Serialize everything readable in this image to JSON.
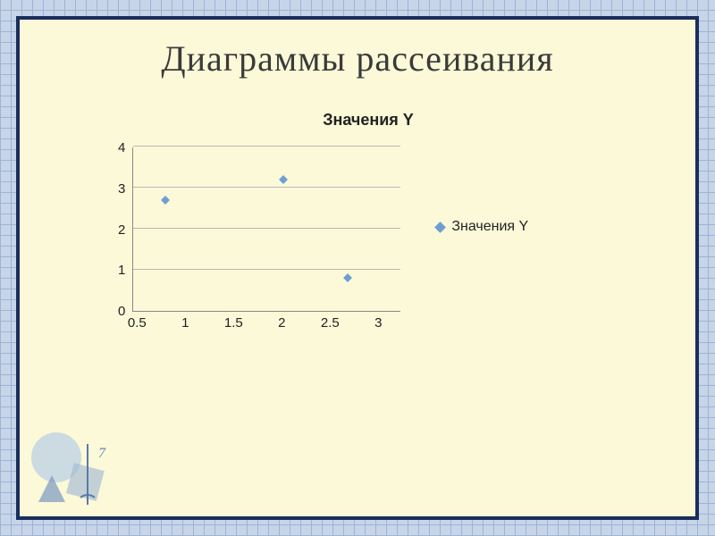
{
  "page": {
    "title": "Диаграммы рассеивания"
  },
  "chart": {
    "type": "scatter",
    "title": "Значения Y",
    "title_fontsize": 18,
    "background_color": "#fbf9d8",
    "grid_color": "#b8b8b8",
    "axis_color": "#888888",
    "marker_color": "#6d9fd4",
    "marker_shape": "diamond",
    "marker_size": 7,
    "x": {
      "min": 0.5,
      "max": 3,
      "tick_step": 0.5,
      "ticks": [
        "0.5",
        "1",
        "1.5",
        "2",
        "2.5",
        "3"
      ],
      "label_fontsize": 15
    },
    "y": {
      "min": 0,
      "max": 4,
      "tick_step": 1,
      "ticks": [
        "4",
        "3",
        "2",
        "1",
        "0"
      ],
      "label_fontsize": 15
    },
    "points": [
      {
        "x": 0.8,
        "y": 2.7
      },
      {
        "x": 1.9,
        "y": 3.2
      },
      {
        "x": 2.5,
        "y": 0.8
      }
    ],
    "legend": {
      "label": "Значения Y",
      "marker_color": "#6d9fd4",
      "fontsize": 16
    }
  },
  "frame": {
    "outer_grid_bg": "#c8d4e8",
    "outer_grid_line": "#9db4d6",
    "border_color": "#1a2e5c",
    "slide_bg": "#fbf9d8"
  }
}
